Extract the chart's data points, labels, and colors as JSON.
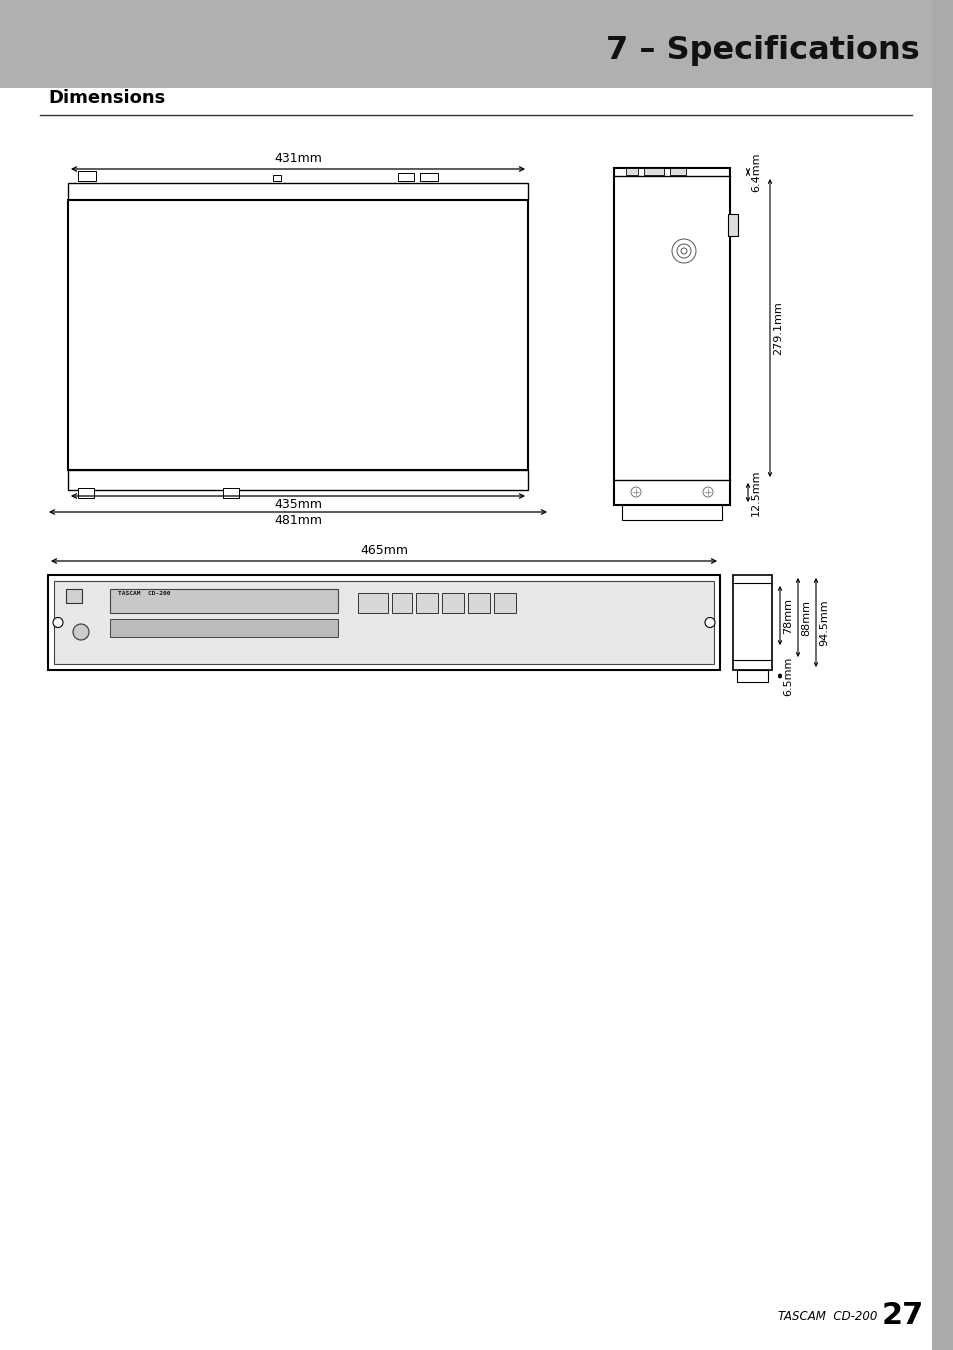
{
  "title": "7 – Specifications",
  "section_title": "Dimensions",
  "footer_text": "TASCAM  CD-200",
  "footer_page": "27",
  "bg_header_color": "#aaaaaa",
  "bg_color": "#ffffff",
  "line_color": "#000000",
  "text_color": "#000000",
  "dim_431": "431mm",
  "dim_435": "435mm",
  "dim_481": "481mm",
  "dim_465": "465mm",
  "dim_6_4": "6.4mm",
  "dim_279_1": "279.1mm",
  "dim_12_5": "12.5mm",
  "dim_78": "78mm",
  "dim_88": "88mm",
  "dim_94_5": "94.5mm",
  "dim_6_5": "6.5mm"
}
